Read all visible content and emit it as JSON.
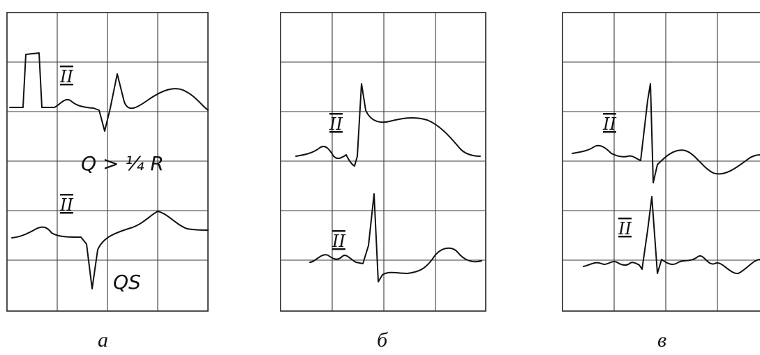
{
  "panels": [
    {
      "id": "a",
      "caption": "а",
      "leads": [
        "II",
        "II"
      ],
      "annotations": [
        "Q > ¼ R",
        "QS"
      ]
    },
    {
      "id": "b",
      "caption": "б",
      "leads": [
        "II",
        "II"
      ],
      "annotations": []
    },
    {
      "id": "c",
      "caption": "в",
      "leads": [
        "II",
        "II"
      ],
      "annotations": []
    }
  ]
}
